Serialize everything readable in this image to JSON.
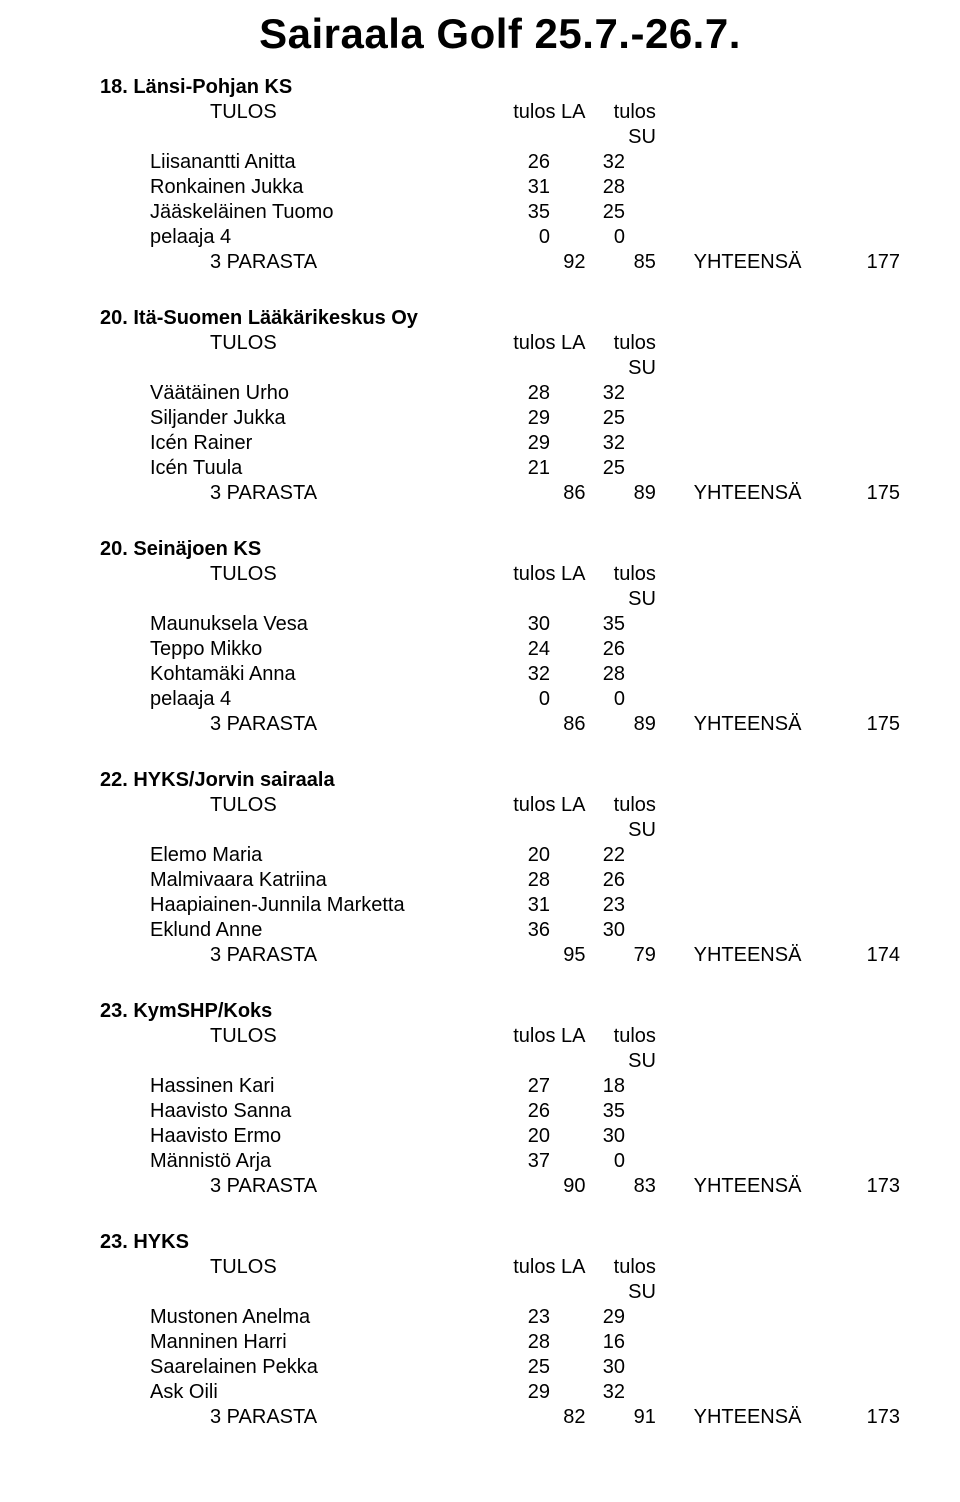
{
  "title": "Sairaala Golf 25.7.-26.7.",
  "labels": {
    "tulos": "TULOS",
    "la": "tulos LA",
    "su": "tulos SU",
    "parasta": "3 PARASTA",
    "yhteensa": "YHTEENSÄ"
  },
  "teams": [
    {
      "name": "18. Länsi-Pohjan KS",
      "players": [
        {
          "name": "Liisanantti Anitta",
          "la": "26",
          "su": "32"
        },
        {
          "name": "Ronkainen Jukka",
          "la": "31",
          "su": "28"
        },
        {
          "name": "Jääskeläinen Tuomo",
          "la": "35",
          "su": "25"
        },
        {
          "name": "pelaaja 4",
          "la": "0",
          "su": "0"
        }
      ],
      "sum_la": "92",
      "sum_su": "85",
      "total": "177"
    },
    {
      "name": "20. Itä-Suomen Lääkärikeskus Oy",
      "players": [
        {
          "name": "Väätäinen Urho",
          "la": "28",
          "su": "32"
        },
        {
          "name": "Siljander Jukka",
          "la": "29",
          "su": "25"
        },
        {
          "name": "Icén Rainer",
          "la": "29",
          "su": "32"
        },
        {
          "name": "Icén Tuula",
          "la": "21",
          "su": "25"
        }
      ],
      "sum_la": "86",
      "sum_su": "89",
      "total": "175"
    },
    {
      "name": "20. Seinäjoen KS",
      "players": [
        {
          "name": "Maunuksela Vesa",
          "la": "30",
          "su": "35"
        },
        {
          "name": "Teppo Mikko",
          "la": "24",
          "su": "26"
        },
        {
          "name": "Kohtamäki Anna",
          "la": "32",
          "su": "28"
        },
        {
          "name": "pelaaja 4",
          "la": "0",
          "su": "0"
        }
      ],
      "sum_la": "86",
      "sum_su": "89",
      "total": "175"
    },
    {
      "name": "22. HYKS/Jorvin sairaala",
      "players": [
        {
          "name": "Elemo Maria",
          "la": "20",
          "su": "22"
        },
        {
          "name": "Malmivaara Katriina",
          "la": "28",
          "su": "26"
        },
        {
          "name": "Haapiainen-Junnila Marketta",
          "la": "31",
          "su": "23"
        },
        {
          "name": "Eklund Anne",
          "la": "36",
          "su": "30"
        }
      ],
      "sum_la": "95",
      "sum_su": "79",
      "total": "174"
    },
    {
      "name": "23. KymSHP/Koks",
      "players": [
        {
          "name": "Hassinen Kari",
          "la": "27",
          "su": "18"
        },
        {
          "name": "Haavisto Sanna",
          "la": "26",
          "su": "35"
        },
        {
          "name": "Haavisto Ermo",
          "la": "20",
          "su": "30"
        },
        {
          "name": "Männistö Arja",
          "la": "37",
          "su": "0"
        }
      ],
      "sum_la": "90",
      "sum_su": "83",
      "total": "173"
    },
    {
      "name": "23. HYKS",
      "players": [
        {
          "name": "Mustonen Anelma",
          "la": "23",
          "su": "29"
        },
        {
          "name": "Manninen Harri",
          "la": "28",
          "su": "16"
        },
        {
          "name": "Saarelainen Pekka",
          "la": "25",
          "su": "30"
        },
        {
          "name": "Ask Oili",
          "la": "29",
          "su": "32"
        }
      ],
      "sum_la": "82",
      "sum_su": "91",
      "total": "173"
    }
  ]
}
